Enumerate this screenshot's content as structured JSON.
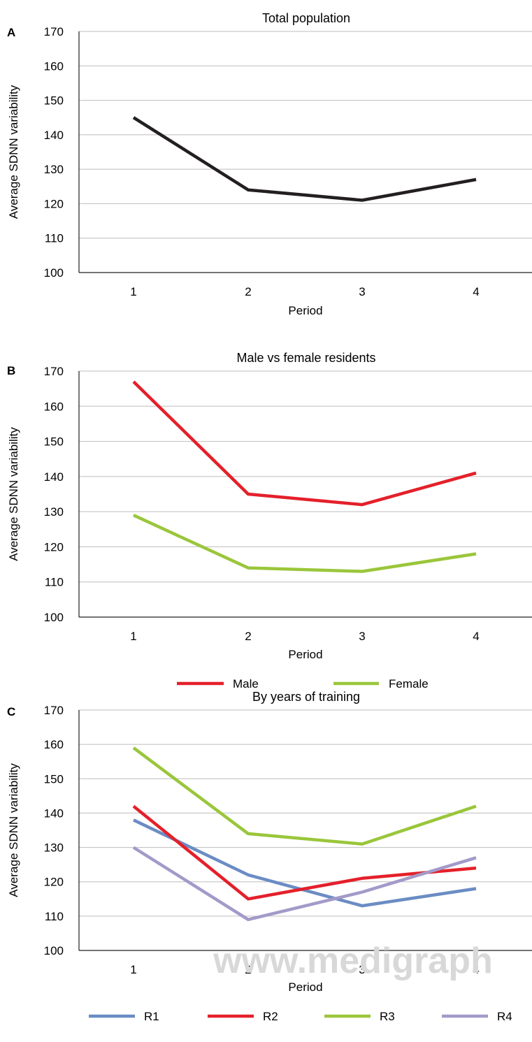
{
  "watermark": "www.medigraph",
  "chart_data": [
    {
      "panel": "A",
      "type": "line",
      "title": "Total population",
      "xlabel": "Period",
      "ylabel": "Average SDNN variability",
      "categories": [
        "1",
        "2",
        "3",
        "4"
      ],
      "ylim": [
        100,
        170
      ],
      "yticks": [
        "100",
        "110",
        "120",
        "130",
        "140",
        "150",
        "160",
        "170"
      ],
      "grid": true,
      "legend": "none",
      "series": [
        {
          "color": "#231f20",
          "values": [
            145,
            124,
            121,
            127
          ]
        }
      ]
    },
    {
      "panel": "B",
      "type": "line",
      "title": "Male vs female residents",
      "xlabel": "Period",
      "ylabel": "Average SDNN variability",
      "categories": [
        "1",
        "2",
        "3",
        "4"
      ],
      "ylim": [
        100,
        170
      ],
      "yticks": [
        "100",
        "110",
        "120",
        "130",
        "140",
        "150",
        "160",
        "170"
      ],
      "grid": true,
      "legend": "bottom",
      "series": [
        {
          "name": "Male",
          "color": "#e4202a",
          "values": [
            167,
            135,
            132,
            141
          ]
        },
        {
          "name": "Female",
          "color": "#9ac63b",
          "values": [
            129,
            114,
            113,
            118
          ]
        }
      ]
    },
    {
      "panel": "C",
      "type": "line",
      "title": "By years of training",
      "xlabel": "Period",
      "ylabel": "Average SDNN variability",
      "categories": [
        "1",
        "2",
        "3",
        "4"
      ],
      "ylim": [
        100,
        170
      ],
      "yticks": [
        "100",
        "110",
        "120",
        "130",
        "140",
        "150",
        "160",
        "170"
      ],
      "grid": true,
      "legend": "bottom",
      "series": [
        {
          "name": "R1",
          "color": "#6b8cc4",
          "values": [
            138,
            122,
            113,
            118
          ]
        },
        {
          "name": "R2",
          "color": "#e4202a",
          "values": [
            142,
            115,
            121,
            124
          ]
        },
        {
          "name": "R3",
          "color": "#9ac63b",
          "values": [
            159,
            134,
            131,
            142
          ]
        },
        {
          "name": "R4",
          "color": "#a39ac9",
          "values": [
            130,
            109,
            117,
            127
          ]
        }
      ]
    }
  ]
}
